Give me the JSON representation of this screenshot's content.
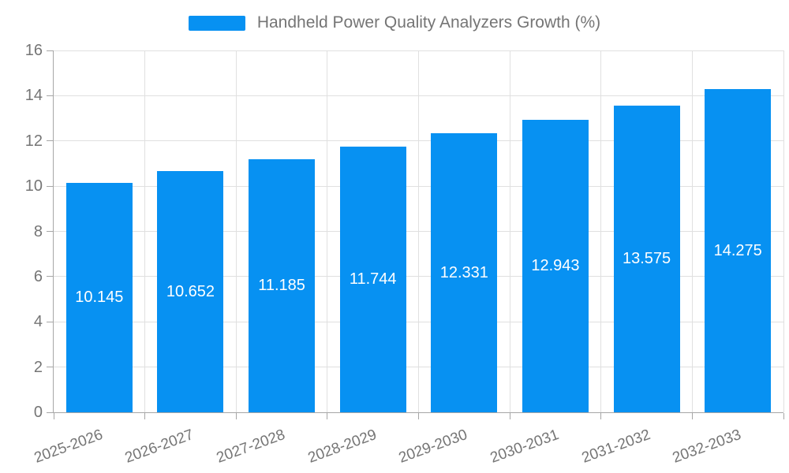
{
  "chart_data": {
    "type": "bar",
    "title": "",
    "legend": "Handheld Power Quality Analyzers Growth (%)",
    "legend_position": "top",
    "categories": [
      "2025-2026",
      "2026-2027",
      "2027-2028",
      "2028-2029",
      "2029-2030",
      "2030-2031",
      "2031-2032",
      "2032-2033"
    ],
    "values": [
      10.145,
      10.652,
      11.185,
      11.744,
      12.331,
      12.943,
      13.575,
      14.275
    ],
    "value_labels": [
      "10.145",
      "10.652",
      "11.185",
      "11.744",
      "12.331",
      "12.943",
      "13.575",
      "14.275"
    ],
    "xlabel": "",
    "ylabel": "",
    "ylim": [
      0,
      16
    ],
    "ytick_step": 2,
    "ytick_labels": [
      "0",
      "2",
      "4",
      "6",
      "8",
      "10",
      "12",
      "14",
      "16"
    ],
    "grid": true,
    "x_label_rotation_deg": -20,
    "colors": {
      "bar": "#0791F2",
      "bar_label": "#FFFFFF",
      "axis_text": "#757575",
      "grid_line": "#E0E0E0",
      "axis_line": "#A6A6A6",
      "background": "#FFFFFF"
    }
  }
}
